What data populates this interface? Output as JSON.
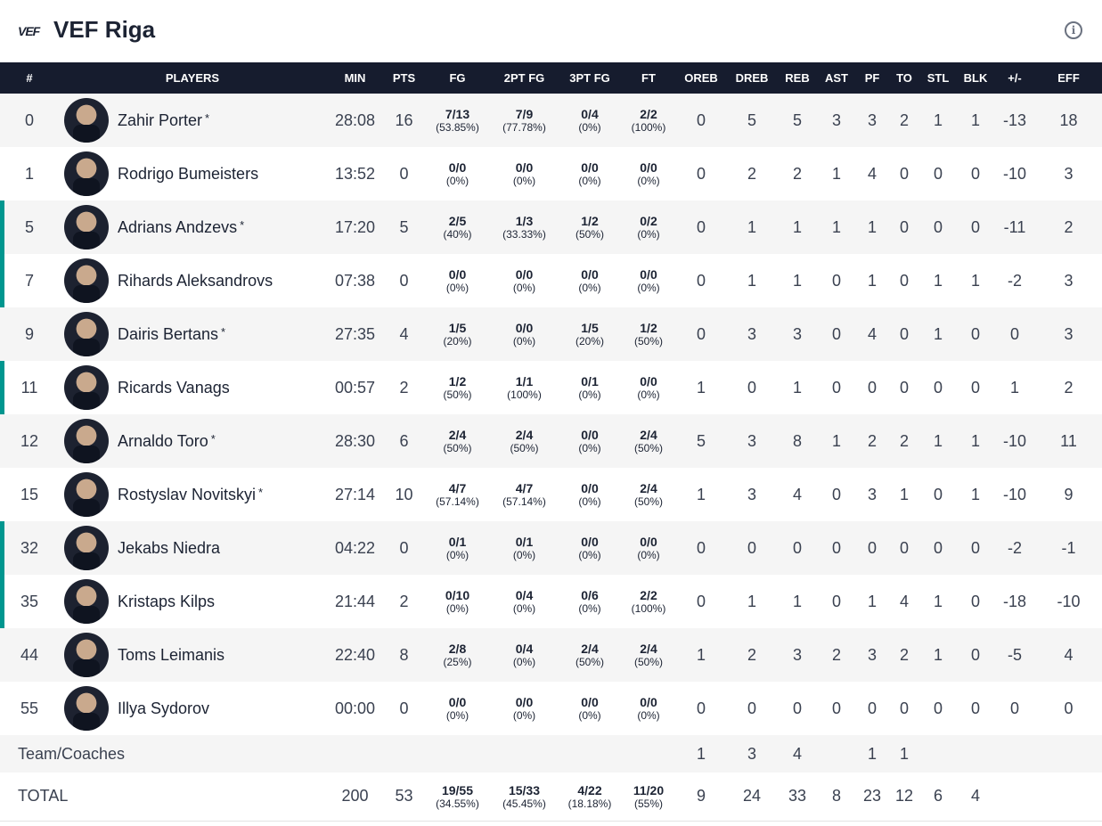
{
  "header": {
    "logo": "VEF",
    "title": "VEF Riga",
    "info_icon": "info-icon"
  },
  "columns": [
    "#",
    "PLAYERS",
    "MIN",
    "PTS",
    "FG",
    "2PT FG",
    "3PT FG",
    "FT",
    "OREB",
    "DREB",
    "REB",
    "AST",
    "PF",
    "TO",
    "STL",
    "BLK",
    "+/-",
    "EFF"
  ],
  "players": [
    {
      "num": "0",
      "name": "Zahir Porter",
      "star": "*",
      "bar": false,
      "min": "28:08",
      "pts": "16",
      "fg": "7/13",
      "fgp": "(53.85%)",
      "p2": "7/9",
      "p2p": "(77.78%)",
      "p3": "0/4",
      "p3p": "(0%)",
      "ft": "2/2",
      "ftp": "(100%)",
      "oreb": "0",
      "dreb": "5",
      "reb": "5",
      "ast": "3",
      "pf": "3",
      "to": "2",
      "stl": "1",
      "blk": "1",
      "pm": "-13",
      "eff": "18"
    },
    {
      "num": "1",
      "name": "Rodrigo Bumeisters",
      "star": "",
      "bar": false,
      "min": "13:52",
      "pts": "0",
      "fg": "0/0",
      "fgp": "(0%)",
      "p2": "0/0",
      "p2p": "(0%)",
      "p3": "0/0",
      "p3p": "(0%)",
      "ft": "0/0",
      "ftp": "(0%)",
      "oreb": "0",
      "dreb": "2",
      "reb": "2",
      "ast": "1",
      "pf": "4",
      "to": "0",
      "stl": "0",
      "blk": "0",
      "pm": "-10",
      "eff": "3"
    },
    {
      "num": "5",
      "name": "Adrians Andzevs",
      "star": "*",
      "bar": true,
      "min": "17:20",
      "pts": "5",
      "fg": "2/5",
      "fgp": "(40%)",
      "p2": "1/3",
      "p2p": "(33.33%)",
      "p3": "1/2",
      "p3p": "(50%)",
      "ft": "0/2",
      "ftp": "(0%)",
      "oreb": "0",
      "dreb": "1",
      "reb": "1",
      "ast": "1",
      "pf": "1",
      "to": "0",
      "stl": "0",
      "blk": "0",
      "pm": "-11",
      "eff": "2"
    },
    {
      "num": "7",
      "name": "Rihards Aleksandrovs",
      "star": "",
      "bar": true,
      "min": "07:38",
      "pts": "0",
      "fg": "0/0",
      "fgp": "(0%)",
      "p2": "0/0",
      "p2p": "(0%)",
      "p3": "0/0",
      "p3p": "(0%)",
      "ft": "0/0",
      "ftp": "(0%)",
      "oreb": "0",
      "dreb": "1",
      "reb": "1",
      "ast": "0",
      "pf": "1",
      "to": "0",
      "stl": "1",
      "blk": "1",
      "pm": "-2",
      "eff": "3"
    },
    {
      "num": "9",
      "name": "Dairis Bertans",
      "star": "*",
      "bar": false,
      "min": "27:35",
      "pts": "4",
      "fg": "1/5",
      "fgp": "(20%)",
      "p2": "0/0",
      "p2p": "(0%)",
      "p3": "1/5",
      "p3p": "(20%)",
      "ft": "1/2",
      "ftp": "(50%)",
      "oreb": "0",
      "dreb": "3",
      "reb": "3",
      "ast": "0",
      "pf": "4",
      "to": "0",
      "stl": "1",
      "blk": "0",
      "pm": "0",
      "eff": "3"
    },
    {
      "num": "11",
      "name": "Ricards Vanags",
      "star": "",
      "bar": true,
      "min": "00:57",
      "pts": "2",
      "fg": "1/2",
      "fgp": "(50%)",
      "p2": "1/1",
      "p2p": "(100%)",
      "p3": "0/1",
      "p3p": "(0%)",
      "ft": "0/0",
      "ftp": "(0%)",
      "oreb": "1",
      "dreb": "0",
      "reb": "1",
      "ast": "0",
      "pf": "0",
      "to": "0",
      "stl": "0",
      "blk": "0",
      "pm": "1",
      "eff": "2"
    },
    {
      "num": "12",
      "name": "Arnaldo Toro",
      "star": "*",
      "bar": false,
      "min": "28:30",
      "pts": "6",
      "fg": "2/4",
      "fgp": "(50%)",
      "p2": "2/4",
      "p2p": "(50%)",
      "p3": "0/0",
      "p3p": "(0%)",
      "ft": "2/4",
      "ftp": "(50%)",
      "oreb": "5",
      "dreb": "3",
      "reb": "8",
      "ast": "1",
      "pf": "2",
      "to": "2",
      "stl": "1",
      "blk": "1",
      "pm": "-10",
      "eff": "11"
    },
    {
      "num": "15",
      "name": "Rostyslav Novitskyi",
      "star": "*",
      "bar": false,
      "min": "27:14",
      "pts": "10",
      "fg": "4/7",
      "fgp": "(57.14%)",
      "p2": "4/7",
      "p2p": "(57.14%)",
      "p3": "0/0",
      "p3p": "(0%)",
      "ft": "2/4",
      "ftp": "(50%)",
      "oreb": "1",
      "dreb": "3",
      "reb": "4",
      "ast": "0",
      "pf": "3",
      "to": "1",
      "stl": "0",
      "blk": "1",
      "pm": "-10",
      "eff": "9"
    },
    {
      "num": "32",
      "name": "Jekabs Niedra",
      "star": "",
      "bar": true,
      "min": "04:22",
      "pts": "0",
      "fg": "0/1",
      "fgp": "(0%)",
      "p2": "0/1",
      "p2p": "(0%)",
      "p3": "0/0",
      "p3p": "(0%)",
      "ft": "0/0",
      "ftp": "(0%)",
      "oreb": "0",
      "dreb": "0",
      "reb": "0",
      "ast": "0",
      "pf": "0",
      "to": "0",
      "stl": "0",
      "blk": "0",
      "pm": "-2",
      "eff": "-1"
    },
    {
      "num": "35",
      "name": "Kristaps Kilps",
      "star": "",
      "bar": true,
      "min": "21:44",
      "pts": "2",
      "fg": "0/10",
      "fgp": "(0%)",
      "p2": "0/4",
      "p2p": "(0%)",
      "p3": "0/6",
      "p3p": "(0%)",
      "ft": "2/2",
      "ftp": "(100%)",
      "oreb": "0",
      "dreb": "1",
      "reb": "1",
      "ast": "0",
      "pf": "1",
      "to": "4",
      "stl": "1",
      "blk": "0",
      "pm": "-18",
      "eff": "-10"
    },
    {
      "num": "44",
      "name": "Toms Leimanis",
      "star": "",
      "bar": false,
      "min": "22:40",
      "pts": "8",
      "fg": "2/8",
      "fgp": "(25%)",
      "p2": "0/4",
      "p2p": "(0%)",
      "p3": "2/4",
      "p3p": "(50%)",
      "ft": "2/4",
      "ftp": "(50%)",
      "oreb": "1",
      "dreb": "2",
      "reb": "3",
      "ast": "2",
      "pf": "3",
      "to": "2",
      "stl": "1",
      "blk": "0",
      "pm": "-5",
      "eff": "4"
    },
    {
      "num": "55",
      "name": "Illya Sydorov",
      "star": "",
      "bar": false,
      "min": "00:00",
      "pts": "0",
      "fg": "0/0",
      "fgp": "(0%)",
      "p2": "0/0",
      "p2p": "(0%)",
      "p3": "0/0",
      "p3p": "(0%)",
      "ft": "0/0",
      "ftp": "(0%)",
      "oreb": "0",
      "dreb": "0",
      "reb": "0",
      "ast": "0",
      "pf": "0",
      "to": "0",
      "stl": "0",
      "blk": "0",
      "pm": "0",
      "eff": "0"
    }
  ],
  "team_coaches": {
    "label": "Team/Coaches",
    "oreb": "1",
    "dreb": "3",
    "reb": "4",
    "ast": "",
    "pf": "1",
    "to": "1",
    "stl": "",
    "blk": ""
  },
  "total": {
    "label": "TOTAL",
    "min": "200",
    "pts": "53",
    "fg": "19/55",
    "fgp": "(34.55%)",
    "p2": "15/33",
    "p2p": "(45.45%)",
    "p3": "4/22",
    "p3p": "(18.18%)",
    "ft": "11/20",
    "ftp": "(55%)",
    "oreb": "9",
    "dreb": "24",
    "reb": "33",
    "ast": "8",
    "pf": "23",
    "to": "12",
    "stl": "6",
    "blk": "4"
  },
  "colors": {
    "header_bg": "#161c2e",
    "bar": "#00968f",
    "alt_row": "#f5f5f5"
  }
}
